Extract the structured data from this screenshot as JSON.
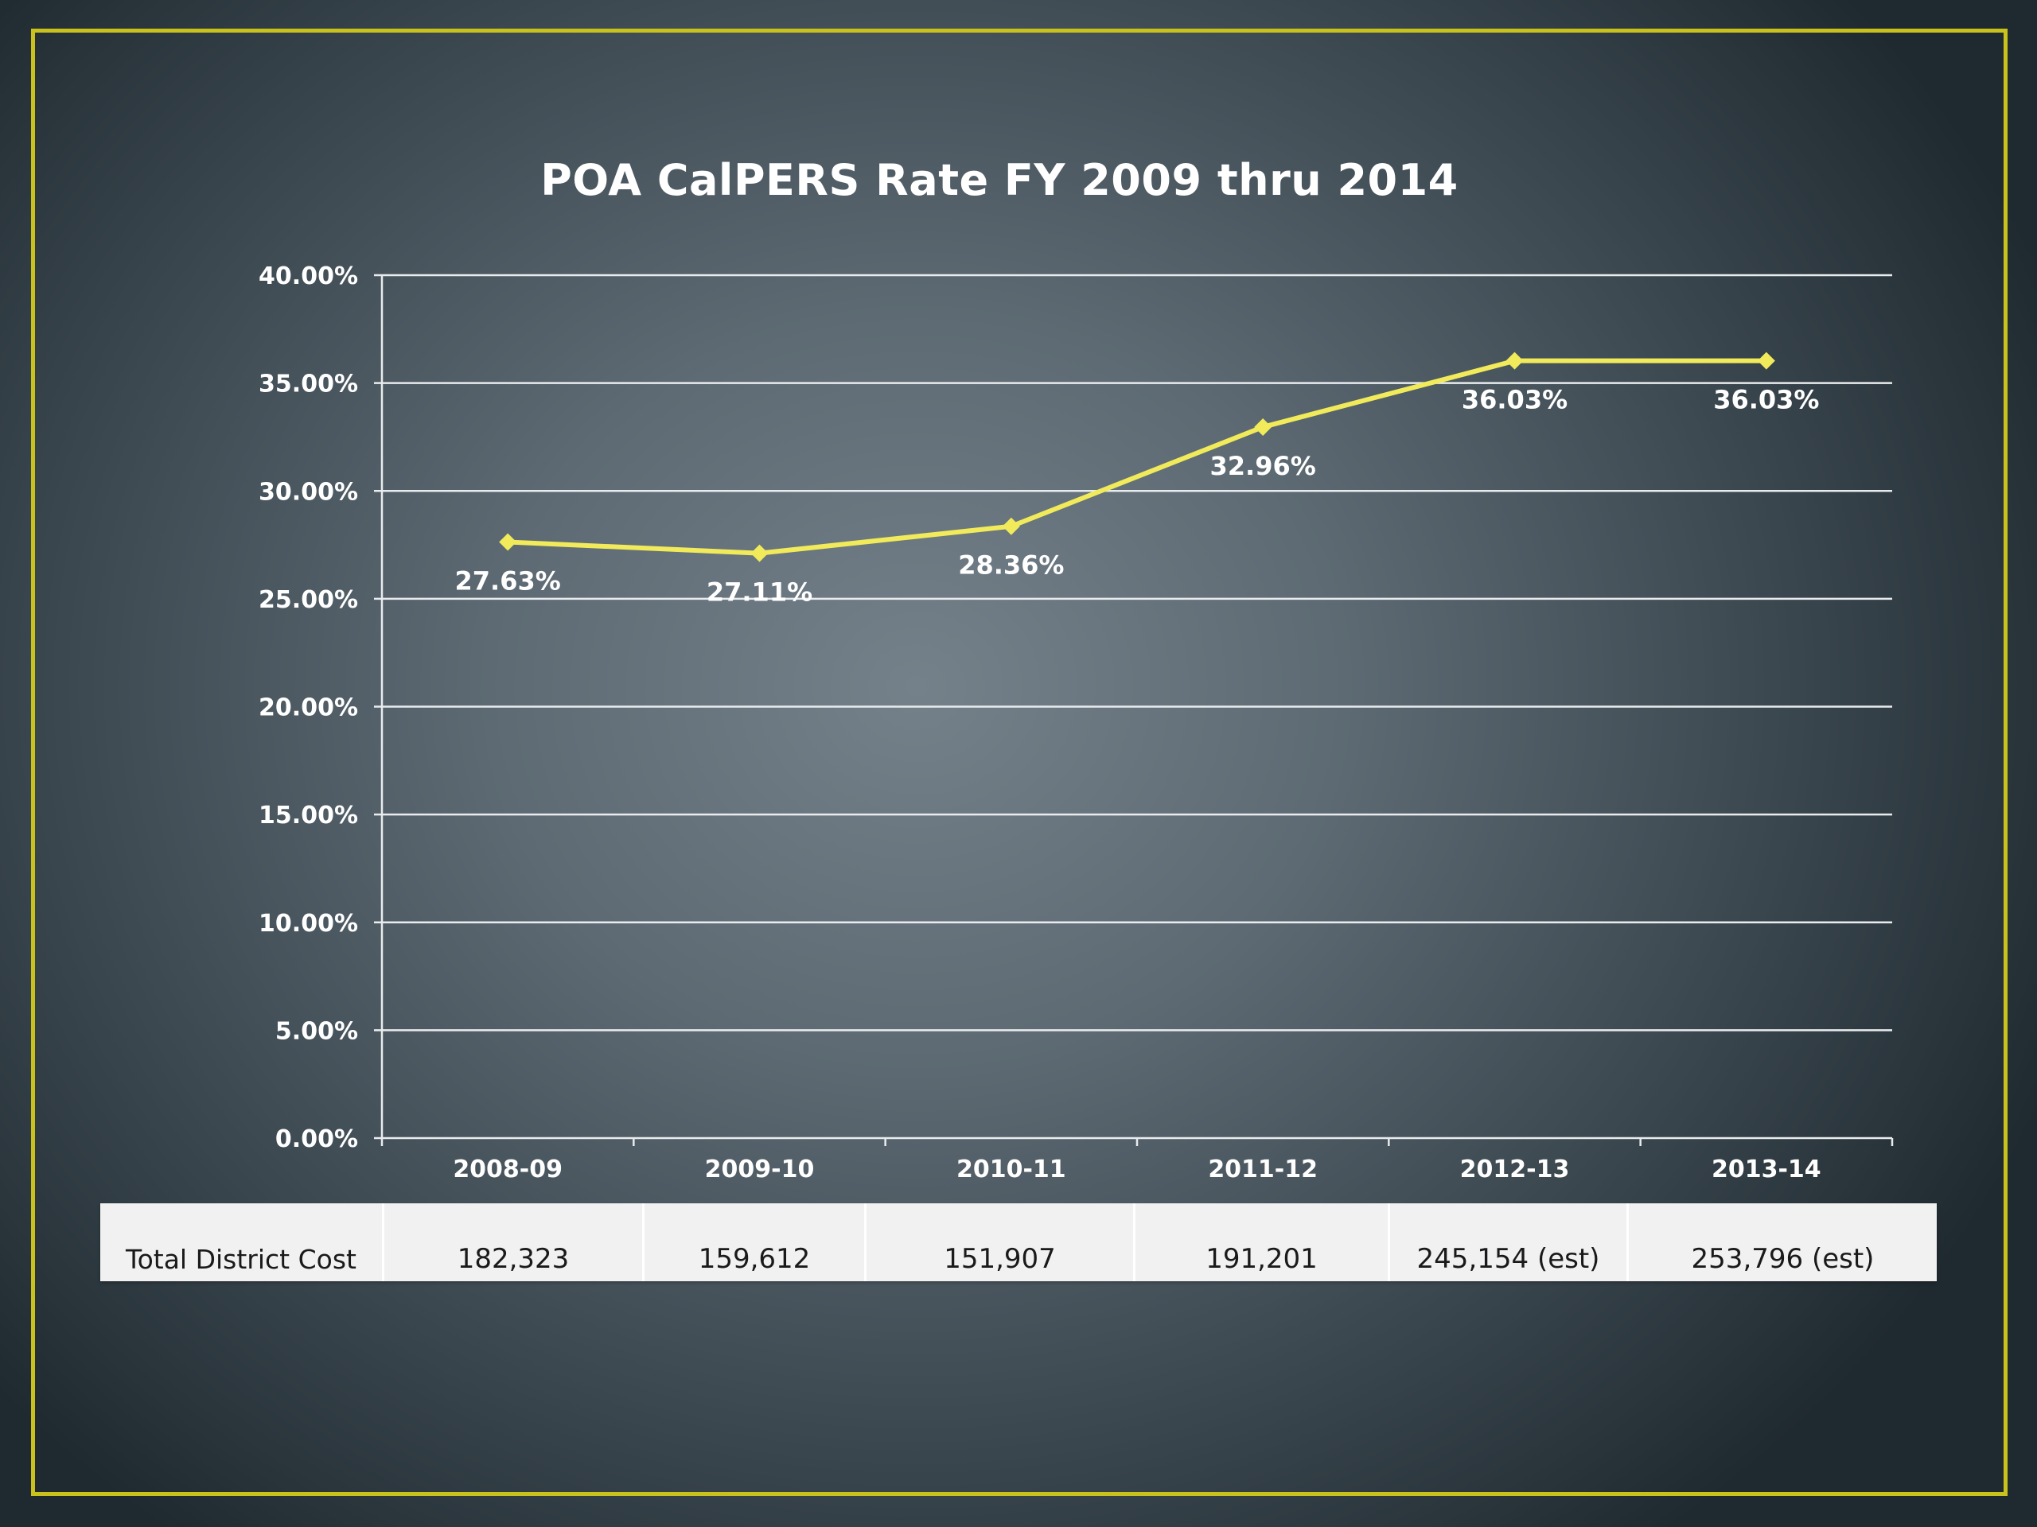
{
  "slide": {
    "title": "POA CalPERS Rate FY 2009 thru 2014",
    "frame_color": "#c9c21d"
  },
  "chart_data": {
    "type": "line",
    "title": "POA CalPERS Rate FY 2009 thru 2014",
    "xlabel": "",
    "ylabel": "",
    "categories": [
      "2008-09",
      "2009-10",
      "2010-11",
      "2011-12",
      "2012-13",
      "2013-14"
    ],
    "series": [
      {
        "values": [
          27.63,
          27.11,
          28.36,
          32.96,
          36.03,
          36.03
        ],
        "data_labels": [
          "27.63%",
          "27.11%",
          "28.36%",
          "32.96%",
          "36.03%",
          "36.03%"
        ],
        "color": "#f1ea5a",
        "marker": "diamond"
      }
    ],
    "ylim": [
      0,
      40
    ],
    "yticks": [
      "0.00%",
      "5.00%",
      "10.00%",
      "15.00%",
      "20.00%",
      "25.00%",
      "30.00%",
      "35.00%",
      "40.00%"
    ],
    "grid": true,
    "legend": "none"
  },
  "cost_table": {
    "label": "Total District Cost",
    "values": [
      "182,323",
      "159,612",
      "151,907",
      "191,201",
      "245,154 (est)",
      "253,796 (est)"
    ]
  }
}
